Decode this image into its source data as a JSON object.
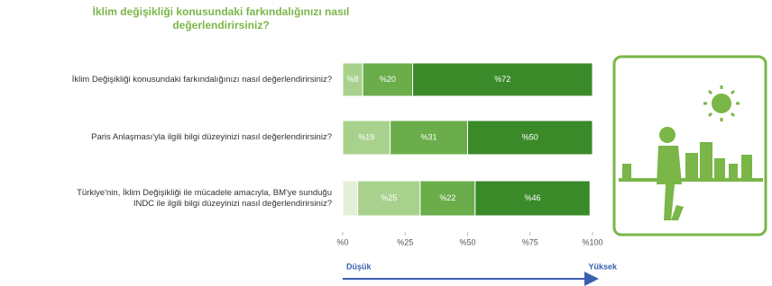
{
  "chart_data": {
    "type": "stacked-barh",
    "title": "İklim değişikliği konusundaki farkındalığınızı nasıl değerlendirirsiniz?",
    "categories": [
      "İklim Değişikliği konusundaki farkındalığınızı nasıl değerlendirirsiniz?",
      "Paris Anlaşması'yla ilgili bilgi düzeyinizi nasıl değerlendirirsiniz?",
      "Türkiye'nin, İklim Değişikliği ile mücadele amacıyla, BM'ye sunduğu INDC ile ilgili bilgi düzeyinizi nasıl değerlendirirsiniz?"
    ],
    "series": [
      {
        "color": "#e4f0d8",
        "values": [
          null,
          null,
          6
        ]
      },
      {
        "color": "#a9d18e",
        "values": [
          8,
          19,
          25
        ],
        "value_labels": [
          "%8",
          "%19",
          "%25"
        ]
      },
      {
        "color": "#6aad4a",
        "values": [
          20,
          31,
          22
        ],
        "value_labels": [
          "%20",
          "%31",
          "%22"
        ]
      },
      {
        "color": "#3b8a2a",
        "values": [
          72,
          50,
          46
        ],
        "value_labels": [
          "%72",
          "%50",
          "%46"
        ]
      }
    ],
    "xlim": [
      0,
      100
    ],
    "xticks": [
      {
        "value": 0,
        "label": "%0"
      },
      {
        "value": 25,
        "label": "%25"
      },
      {
        "value": 50,
        "label": "%50"
      },
      {
        "value": 75,
        "label": "%75"
      },
      {
        "value": 100,
        "label": "%100"
      }
    ],
    "scale_low": "Düşük",
    "scale_high": "Yüksek"
  }
}
